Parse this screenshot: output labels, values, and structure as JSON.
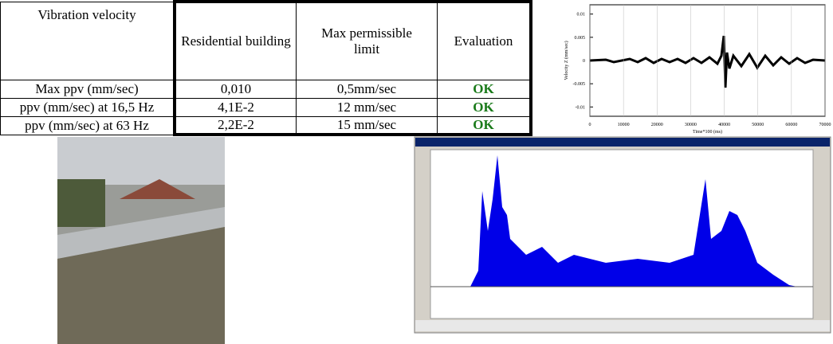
{
  "table": {
    "header": [
      "Vibration velocity",
      "Residential building",
      "Max permissible limit",
      "Evaluation"
    ],
    "rows": [
      [
        "Max   ppv (mm/sec)",
        "0,010",
        "0,5mm/sec",
        "OK"
      ],
      [
        "ppv (mm/sec) at 16,5 Hz",
        "4,1E-2",
        "12  mm/sec",
        "OK"
      ],
      [
        "ppv (mm/sec) at 63 Hz",
        "2,2E-2",
        "15  mm/sec",
        "OK"
      ]
    ]
  },
  "chart_data": {
    "type": "line",
    "y_label": "Velocity Z (mm/sec)",
    "x_label": "Time*100 (ms)",
    "xlim": [
      0,
      70000
    ],
    "xticks": [
      0,
      10000,
      20000,
      30000,
      40000,
      50000,
      60000,
      70000
    ],
    "ylim": [
      -0.012,
      0.012
    ],
    "yticks": [
      0.01,
      0.005,
      0,
      -0.005,
      -0.01
    ]
  }
}
